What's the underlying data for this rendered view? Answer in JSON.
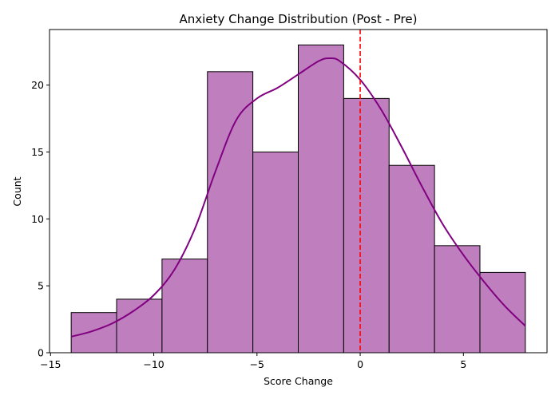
{
  "chart_data": {
    "type": "bar",
    "title": "Anxiety Change Distribution (Post - Pre)",
    "xlabel": "Score Change",
    "ylabel": "Count",
    "xlim": [
      -15.05,
      9.05
    ],
    "ylim": [
      0,
      24.15
    ],
    "bin_edges": [
      -14,
      -11.8,
      -9.6,
      -7.4,
      -5.2,
      -3.0,
      -0.8,
      1.4,
      3.6,
      5.8,
      8.0
    ],
    "values": [
      3,
      4,
      7,
      21,
      15,
      23,
      19,
      14,
      8,
      6
    ],
    "bar_color": "#bf7fbf",
    "bar_edge_color": "#000000",
    "kde": {
      "color": "#800080",
      "points": [
        [
          -14,
          1.2
        ],
        [
          -13,
          1.6
        ],
        [
          -12,
          2.2
        ],
        [
          -11,
          3.1
        ],
        [
          -10,
          4.3
        ],
        [
          -9,
          6.2
        ],
        [
          -8,
          9.3
        ],
        [
          -7,
          13.6
        ],
        [
          -6,
          17.4
        ],
        [
          -5,
          19.0
        ],
        [
          -4,
          19.8
        ],
        [
          -3,
          20.8
        ],
        [
          -2,
          21.8
        ],
        [
          -1.5,
          22.0
        ],
        [
          -1,
          21.8
        ],
        [
          0,
          20.4
        ],
        [
          1,
          18.2
        ],
        [
          2,
          15.4
        ],
        [
          3,
          12.4
        ],
        [
          4,
          9.6
        ],
        [
          5,
          7.3
        ],
        [
          6,
          5.3
        ],
        [
          7,
          3.5
        ],
        [
          8,
          2.0
        ]
      ]
    },
    "reference_line": {
      "x": 0,
      "color": "#ff0000",
      "style": "dashed"
    },
    "x_ticks": [
      {
        "value": -15,
        "label": "−15"
      },
      {
        "value": -10,
        "label": "−10"
      },
      {
        "value": -5,
        "label": "−5"
      },
      {
        "value": 0,
        "label": "0"
      },
      {
        "value": 5,
        "label": "5"
      }
    ],
    "y_ticks": [
      {
        "value": 0,
        "label": "0"
      },
      {
        "value": 5,
        "label": "5"
      },
      {
        "value": 10,
        "label": "10"
      },
      {
        "value": 15,
        "label": "15"
      },
      {
        "value": 20,
        "label": "20"
      }
    ],
    "grid": false,
    "legend": "none"
  }
}
